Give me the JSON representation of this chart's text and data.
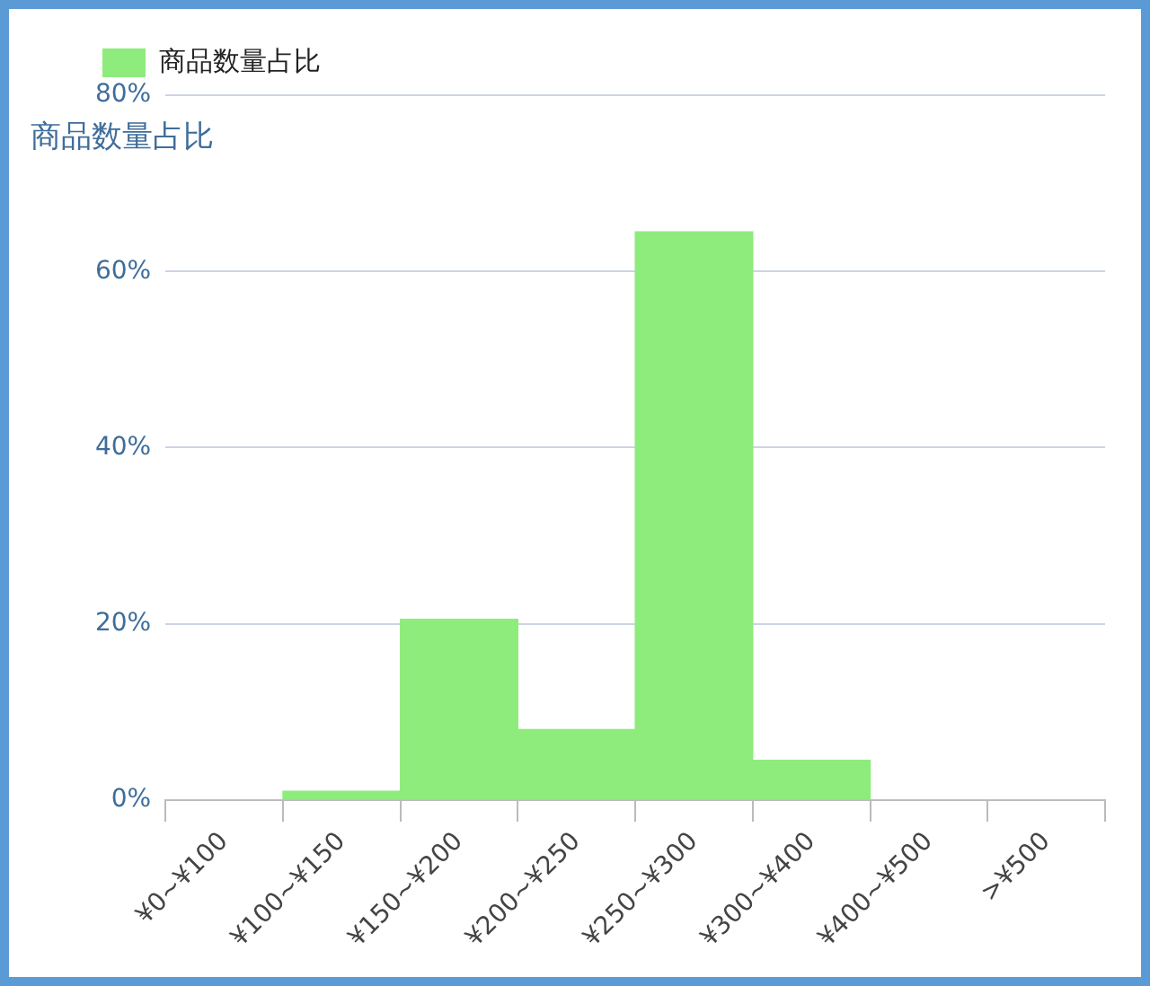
{
  "chart_data": {
    "type": "bar",
    "ylabel": "商品数量占比",
    "categories": [
      "¥0~¥100",
      "¥100~¥150",
      "¥150~¥200",
      "¥200~¥250",
      "¥250~¥300",
      "¥300~¥400",
      "¥400~¥500",
      ">¥500"
    ],
    "series": [
      {
        "name": "商品数量占比",
        "color": "#8eec7c",
        "values": [
          0,
          1,
          20.5,
          8,
          64.5,
          4.5,
          0,
          0
        ]
      }
    ],
    "ylim": [
      0,
      80
    ],
    "yticks": [
      {
        "value": 0,
        "label": "0%"
      },
      {
        "value": 20,
        "label": "20%"
      },
      {
        "value": 40,
        "label": "40%"
      },
      {
        "value": 60,
        "label": "60%"
      },
      {
        "value": 80,
        "label": "80%"
      }
    ],
    "grid": "y",
    "legend": "top"
  }
}
